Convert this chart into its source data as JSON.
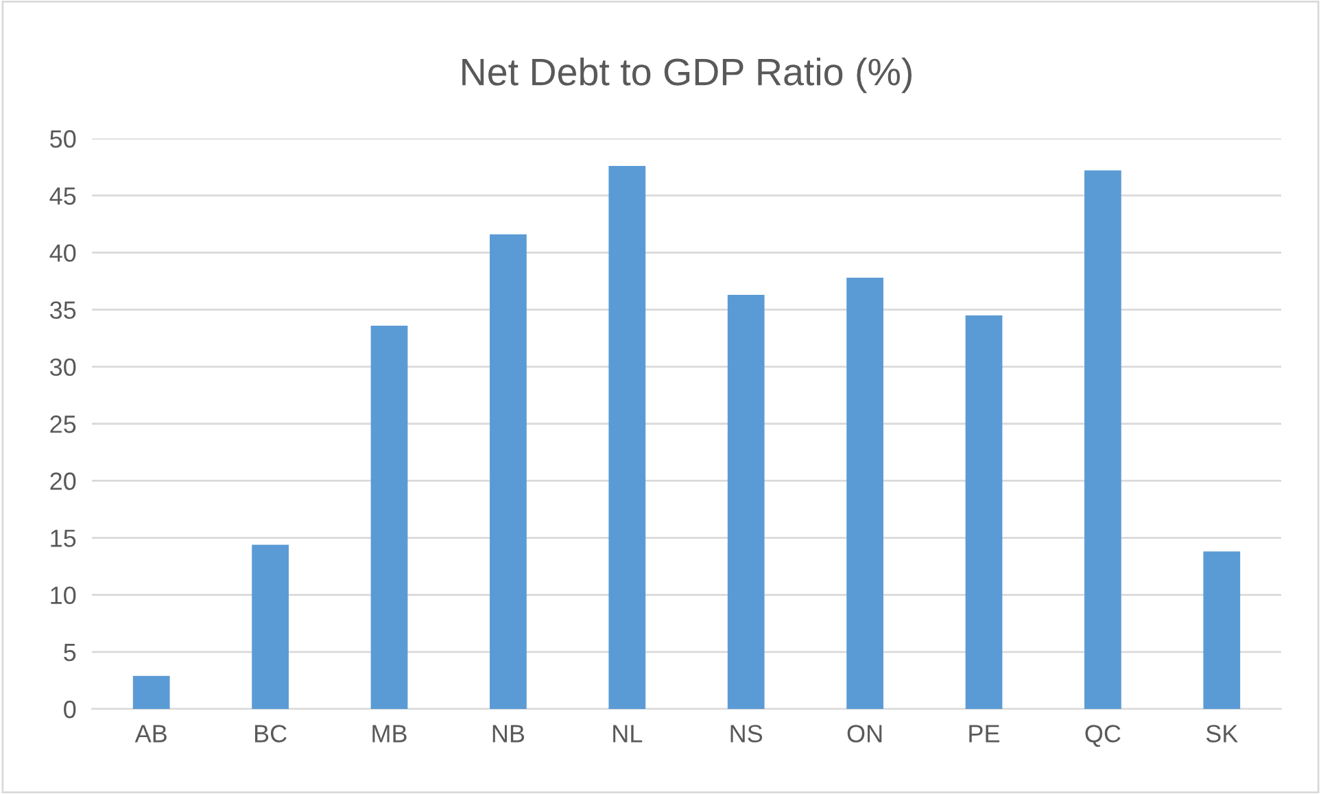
{
  "chart_data": {
    "type": "bar",
    "title": "Net Debt to GDP Ratio (%)",
    "categories": [
      "AB",
      "BC",
      "MB",
      "NB",
      "NL",
      "NS",
      "ON",
      "PE",
      "QC",
      "SK"
    ],
    "values": [
      2.9,
      14.4,
      33.6,
      41.6,
      47.6,
      36.3,
      37.8,
      34.5,
      47.2,
      13.8
    ],
    "color": "#5b9bd5",
    "ylim": [
      0,
      50
    ],
    "yticks": [
      0,
      5,
      10,
      15,
      20,
      25,
      30,
      35,
      40,
      45,
      50
    ],
    "grid": "y",
    "legend": false
  }
}
